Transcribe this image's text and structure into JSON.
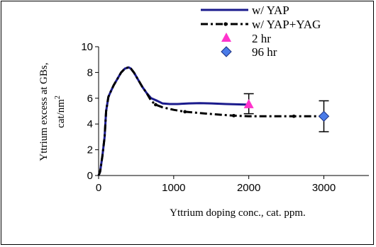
{
  "chart_data": {
    "type": "line",
    "xlabel": "Yttrium doping conc., cat. ppm.",
    "ylabel_line1": "Yttrium excess at GBs,",
    "ylabel_line2_main": "cat/nm",
    "ylabel_line2_sup": "2",
    "xlim": [
      0,
      3600
    ],
    "ylim": [
      0,
      10
    ],
    "x_ticks": [
      0,
      1000,
      2000,
      3000
    ],
    "y_ticks": [
      0,
      2,
      4,
      6,
      8,
      10
    ],
    "x_tick_labels": [
      "0",
      "1000",
      "2000",
      "3000"
    ],
    "y_tick_labels": [
      "0",
      "2",
      "4",
      "6",
      "8",
      "10"
    ],
    "grid": false,
    "legend_position": "top-right",
    "series": [
      {
        "name": "w/ YAP",
        "style": "solid-line",
        "color": "#1a1a8c",
        "x": [
          0,
          20,
          50,
          80,
          100,
          130,
          160,
          200,
          250,
          300,
          350,
          400,
          430,
          470,
          520,
          580,
          640,
          700,
          780,
          850,
          950,
          1050,
          1200,
          1350,
          1500,
          1700,
          2000
        ],
        "y": [
          0,
          0.3,
          1.5,
          3.0,
          5.0,
          6.1,
          6.5,
          7.0,
          7.5,
          8.0,
          8.3,
          8.4,
          8.3,
          8.0,
          7.5,
          6.9,
          6.4,
          6.0,
          5.8,
          5.6,
          5.55,
          5.55,
          5.6,
          5.62,
          5.6,
          5.55,
          5.5
        ]
      },
      {
        "name": "w/ YAP+YAG",
        "style": "dash-dot-black",
        "color": "#000000",
        "x": [
          0,
          20,
          50,
          80,
          100,
          130,
          160,
          200,
          250,
          300,
          350,
          400,
          430,
          470,
          520,
          580,
          640,
          700,
          760,
          850,
          1000,
          1150,
          1350,
          1550,
          1800,
          2000,
          2300,
          2600,
          3000
        ],
        "y": [
          0,
          0.3,
          1.5,
          3.0,
          5.0,
          6.1,
          6.5,
          7.0,
          7.5,
          8.0,
          8.3,
          8.4,
          8.3,
          8.0,
          7.5,
          6.9,
          6.4,
          5.8,
          5.5,
          5.3,
          5.1,
          4.95,
          4.85,
          4.75,
          4.65,
          4.6,
          4.6,
          4.6,
          4.6
        ]
      },
      {
        "name": "2 hr",
        "style": "triangle-marker",
        "color": "#ff33cc",
        "x": [
          2000
        ],
        "y": [
          5.5
        ],
        "error_low": [
          4.8
        ],
        "error_high": [
          6.35
        ]
      },
      {
        "name": "96 hr",
        "style": "diamond-marker",
        "color": "#4a7be8",
        "x": [
          3000
        ],
        "y": [
          4.6
        ],
        "error_low": [
          3.4
        ],
        "error_high": [
          5.8
        ]
      }
    ]
  }
}
